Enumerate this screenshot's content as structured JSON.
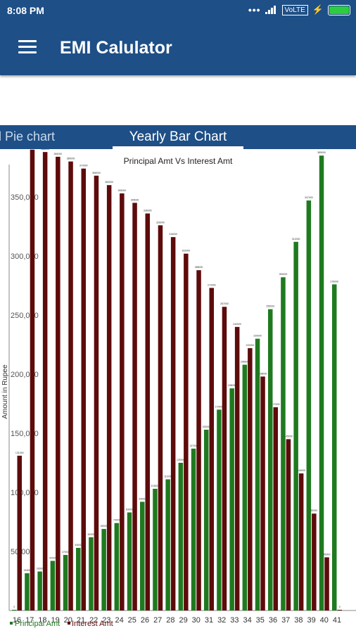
{
  "status_bar": {
    "time": "8:08 PM",
    "network": "VoLTE",
    "icons": [
      "more-dots-icon",
      "signal-icon",
      "charging-icon",
      "battery-icon"
    ]
  },
  "app_bar": {
    "title": "EMI Calulator",
    "menu_icon": "hamburger-menu-icon"
  },
  "tabs": [
    {
      "label": "ll Pie chart",
      "active": false
    },
    {
      "label": "Yearly Bar Chart",
      "active": true
    }
  ],
  "colors": {
    "primary": "#1e4f86",
    "principal": "#1f7a1f",
    "interest": "#5e0b0b"
  },
  "chart_data": {
    "type": "bar",
    "title": "Principal Amt Vs Interest Amt",
    "ylabel": "Amount in Rupee",
    "xlabel": "",
    "ylim": [
      0,
      385000
    ],
    "yticks": [
      "50,000",
      "100,000",
      "150,000",
      "200,000",
      "250,000",
      "300,000",
      "350,000"
    ],
    "categories": [
      "16",
      "17",
      "18",
      "19",
      "20",
      "21",
      "22",
      "23",
      "24",
      "25",
      "26",
      "27",
      "28",
      "29",
      "30",
      "31",
      "32",
      "33",
      "34",
      "35",
      "36",
      "37",
      "38",
      "39",
      "40",
      "41"
    ],
    "series": [
      {
        "name": "Principal Amt",
        "values": [
          0,
          31500,
          33000,
          42000,
          47000,
          53000,
          62000,
          69000,
          74000,
          83000,
          92000,
          103000,
          111000,
          125000,
          137000,
          153000,
          170000,
          188000,
          208000,
          230000,
          255000,
          282000,
          312000,
          347000,
          385000,
          276000
        ]
      },
      {
        "name": "Interest Amt",
        "values": [
          131000,
          390000,
          388000,
          384000,
          380000,
          374000,
          368000,
          360000,
          353000,
          345000,
          336000,
          326000,
          316000,
          302000,
          288000,
          273000,
          257000,
          240000,
          222000,
          198000,
          172000,
          145000,
          116000,
          82000,
          45000,
          0
        ]
      }
    ],
    "legend": "bottom-left",
    "grid": false
  }
}
